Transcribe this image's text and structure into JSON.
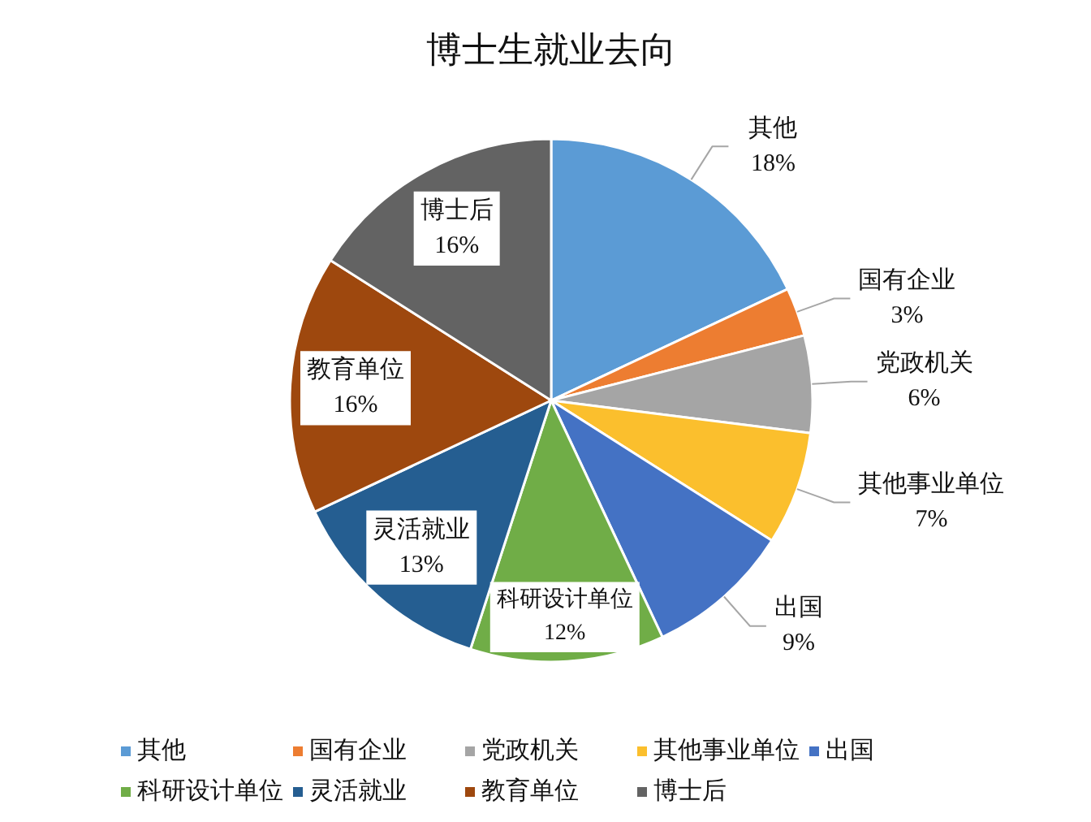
{
  "chart_data": {
    "type": "pie",
    "title": "博士生就业去向",
    "categories": [
      "其他",
      "国有企业",
      "党政机关",
      "其他事业单位",
      "出国",
      "科研设计单位",
      "灵活就业",
      "教育单位",
      "博士后"
    ],
    "values": [
      18,
      3,
      6,
      7,
      9,
      12,
      13,
      16,
      16
    ],
    "value_labels": [
      "18%",
      "3%",
      "6%",
      "7%",
      "9%",
      "12%",
      "13%",
      "16%",
      "16%"
    ],
    "colors": [
      "#5b9bd5",
      "#ed7d31",
      "#a5a5a5",
      "#fbbf2d",
      "#4472c4",
      "#70ad47",
      "#255e91",
      "#9e480e",
      "#636363"
    ],
    "legend": "bottom"
  }
}
